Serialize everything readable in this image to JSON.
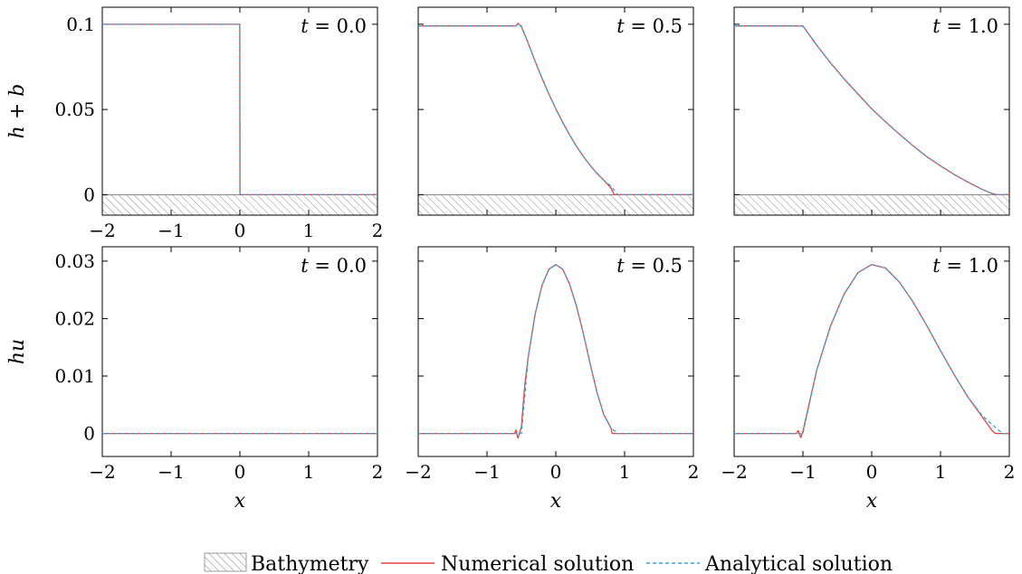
{
  "chart_data": [
    {
      "type": "line",
      "row": "top",
      "time_label": "t = 0.0",
      "ylabel": "h + b",
      "xlim": [
        -2,
        2
      ],
      "ylim": [
        -0.012,
        0.11
      ],
      "yticks": [
        0,
        0.05,
        0.1
      ],
      "ytick_labels": [
        "0",
        "0.05",
        "0.1"
      ],
      "xticks": [
        -2,
        -1,
        0,
        1,
        2
      ],
      "xtick_labels": [
        "−2",
        "−1",
        "0",
        "1",
        "2"
      ],
      "bathymetry": {
        "top": 0,
        "bottom": -0.012
      },
      "series": [
        {
          "name": "Numerical solution",
          "color": "#e8413c",
          "x": [
            -2,
            -0.001,
            0.001,
            2
          ],
          "y": [
            0.1,
            0.1,
            0,
            0
          ]
        },
        {
          "name": "Analytical solution",
          "color": "#3aa0dc",
          "x": [
            -2,
            -0.001,
            0.001,
            2
          ],
          "y": [
            0.1,
            0.1,
            0,
            0
          ]
        }
      ]
    },
    {
      "type": "line",
      "row": "top",
      "time_label": "t = 0.5",
      "xlim": [
        -2,
        2
      ],
      "ylim": [
        -0.012,
        0.11
      ],
      "yticks": [
        0,
        0.05,
        0.1
      ],
      "xticks": [
        -2,
        -1,
        0,
        1,
        2
      ],
      "bathymetry": {
        "top": 0,
        "bottom": -0.012
      },
      "series": [
        {
          "name": "Numerical solution",
          "color": "#e8413c",
          "x": [
            -2,
            -0.58,
            -0.55,
            -0.5,
            -0.4,
            -0.3,
            -0.2,
            -0.1,
            0,
            0.1,
            0.2,
            0.3,
            0.4,
            0.5,
            0.6,
            0.7,
            0.8,
            0.85,
            0.9,
            2
          ],
          "y": [
            0.099,
            0.099,
            0.1005,
            0.0985,
            0.0888,
            0.0782,
            0.0683,
            0.059,
            0.0504,
            0.0424,
            0.0351,
            0.0284,
            0.0224,
            0.0171,
            0.0124,
            0.0084,
            0.004,
            0.0,
            0.0,
            0.0
          ]
        },
        {
          "name": "Analytical solution",
          "color": "#3aa0dc",
          "x": [
            -2,
            -0.5,
            -0.4,
            -0.3,
            -0.2,
            -0.1,
            0,
            0.1,
            0.2,
            0.3,
            0.4,
            0.5,
            0.6,
            0.7,
            0.8,
            0.9,
            2
          ],
          "y": [
            0.099,
            0.099,
            0.0888,
            0.0782,
            0.0683,
            0.059,
            0.0504,
            0.0424,
            0.0351,
            0.0284,
            0.0224,
            0.0171,
            0.0124,
            0.0084,
            0.0051,
            0.0,
            0.0
          ]
        }
      ]
    },
    {
      "type": "line",
      "row": "top",
      "time_label": "t = 1.0",
      "xlim": [
        -2,
        2
      ],
      "ylim": [
        -0.012,
        0.11
      ],
      "yticks": [
        0,
        0.05,
        0.1
      ],
      "xticks": [
        -2,
        -1,
        0,
        1,
        2
      ],
      "bathymetry": {
        "top": 0,
        "bottom": -0.012
      },
      "series": [
        {
          "name": "Numerical solution",
          "color": "#e8413c",
          "x": [
            -2,
            -1.05,
            -1.0,
            -0.8,
            -0.6,
            -0.4,
            -0.2,
            0,
            0.2,
            0.4,
            0.6,
            0.8,
            1.0,
            1.2,
            1.4,
            1.6,
            1.75,
            1.82,
            2
          ],
          "y": [
            0.099,
            0.099,
            0.099,
            0.0877,
            0.0774,
            0.0679,
            0.0591,
            0.0504,
            0.0428,
            0.0356,
            0.0287,
            0.0223,
            0.0169,
            0.0118,
            0.0073,
            0.0032,
            0.0006,
            0.0,
            0.0
          ]
        },
        {
          "name": "Analytical solution",
          "color": "#3aa0dc",
          "x": [
            -2,
            -1.0,
            -0.8,
            -0.6,
            -0.4,
            -0.2,
            0,
            0.2,
            0.4,
            0.6,
            0.8,
            1.0,
            1.2,
            1.4,
            1.6,
            1.8,
            2
          ],
          "y": [
            0.099,
            0.099,
            0.0877,
            0.0774,
            0.0679,
            0.0591,
            0.0504,
            0.0428,
            0.0356,
            0.0287,
            0.0223,
            0.0169,
            0.0118,
            0.0073,
            0.0032,
            0.0,
            0.0
          ]
        }
      ]
    },
    {
      "type": "line",
      "row": "bottom",
      "time_label": "t = 0.0",
      "ylabel": "hu",
      "xlabel": "x",
      "xlim": [
        -2,
        2
      ],
      "ylim": [
        -0.004,
        0.0325
      ],
      "yticks": [
        0,
        0.01,
        0.02,
        0.03
      ],
      "ytick_labels": [
        "0",
        "0.01",
        "0.02",
        "0.03"
      ],
      "xticks": [
        -2,
        -1,
        0,
        1,
        2
      ],
      "xtick_labels": [
        "−2",
        "−1",
        "0",
        "1",
        "2"
      ],
      "series": [
        {
          "name": "Numerical solution",
          "color": "#e8413c",
          "x": [
            -2,
            2
          ],
          "y": [
            0,
            0
          ]
        },
        {
          "name": "Analytical solution",
          "color": "#3aa0dc",
          "x": [
            -2,
            2
          ],
          "y": [
            0,
            0
          ]
        }
      ]
    },
    {
      "type": "line",
      "row": "bottom",
      "time_label": "t = 0.5",
      "xlabel": "x",
      "xlim": [
        -2,
        2
      ],
      "ylim": [
        -0.004,
        0.0325
      ],
      "yticks": [
        0,
        0.01,
        0.02,
        0.03
      ],
      "xticks": [
        -2,
        -1,
        0,
        1,
        2
      ],
      "xtick_labels": [
        "−2",
        "−1",
        "0",
        "1",
        "2"
      ],
      "series": [
        {
          "name": "Numerical solution",
          "color": "#e8413c",
          "x": [
            -2,
            -0.6,
            -0.58,
            -0.55,
            -0.5,
            -0.45,
            -0.4,
            -0.3,
            -0.2,
            -0.1,
            0,
            0.1,
            0.2,
            0.3,
            0.4,
            0.5,
            0.6,
            0.7,
            0.8,
            0.82,
            0.85,
            2
          ],
          "y": [
            0,
            0,
            0.0006,
            -0.0008,
            0.0012,
            0.0085,
            0.0134,
            0.0208,
            0.0258,
            0.0286,
            0.0294,
            0.0286,
            0.026,
            0.0222,
            0.0174,
            0.0121,
            0.0071,
            0.0032,
            0.001,
            0.0,
            0.0,
            0
          ]
        },
        {
          "name": "Analytical solution",
          "color": "#3aa0dc",
          "x": [
            -2,
            -0.5,
            -0.4,
            -0.3,
            -0.2,
            -0.1,
            0,
            0.1,
            0.2,
            0.3,
            0.4,
            0.5,
            0.6,
            0.7,
            0.8,
            0.9,
            2
          ],
          "y": [
            0,
            0,
            0.0134,
            0.0208,
            0.0258,
            0.0286,
            0.0294,
            0.0286,
            0.026,
            0.0222,
            0.0174,
            0.0121,
            0.0071,
            0.0032,
            0.001,
            0.0,
            0
          ]
        }
      ]
    },
    {
      "type": "line",
      "row": "bottom",
      "time_label": "t = 1.0",
      "xlabel": "x",
      "xlim": [
        -2,
        2
      ],
      "ylim": [
        -0.004,
        0.0325
      ],
      "yticks": [
        0,
        0.01,
        0.02,
        0.03
      ],
      "xticks": [
        -2,
        -1,
        0,
        1,
        2
      ],
      "xtick_labels": [
        "−2",
        "−1",
        "0",
        "1",
        "2"
      ],
      "series": [
        {
          "name": "Numerical solution",
          "color": "#e8413c",
          "x": [
            -2,
            -1.1,
            -1.07,
            -1.03,
            -1.0,
            -0.8,
            -0.6,
            -0.4,
            -0.2,
            0,
            0.2,
            0.4,
            0.6,
            0.8,
            1.0,
            1.2,
            1.4,
            1.6,
            1.75,
            1.8,
            2
          ],
          "y": [
            0,
            0,
            0.0005,
            -0.0007,
            0.0004,
            0.011,
            0.0187,
            0.0243,
            0.028,
            0.0294,
            0.0288,
            0.0264,
            0.0229,
            0.0188,
            0.0144,
            0.0102,
            0.0063,
            0.003,
            0.0005,
            0.0,
            0
          ]
        },
        {
          "name": "Analytical solution",
          "color": "#3aa0dc",
          "x": [
            -2,
            -1.0,
            -0.8,
            -0.6,
            -0.4,
            -0.2,
            0,
            0.2,
            0.4,
            0.6,
            0.8,
            1.0,
            1.2,
            1.4,
            1.6,
            1.8,
            1.9,
            2
          ],
          "y": [
            0,
            0,
            0.011,
            0.0187,
            0.0243,
            0.028,
            0.0294,
            0.0288,
            0.0264,
            0.0229,
            0.0188,
            0.0144,
            0.0102,
            0.0063,
            0.0032,
            0.001,
            0.0,
            0
          ]
        }
      ]
    }
  ],
  "legend": {
    "placement": "bottom-center",
    "items": [
      {
        "label": "Bathymetry",
        "style": "hatch",
        "color": "#999999"
      },
      {
        "label": "Numerical solution",
        "style": "solid",
        "color": "#e8413c"
      },
      {
        "label": "Analytical solution",
        "style": "dashed",
        "color": "#3aa0dc"
      }
    ]
  }
}
